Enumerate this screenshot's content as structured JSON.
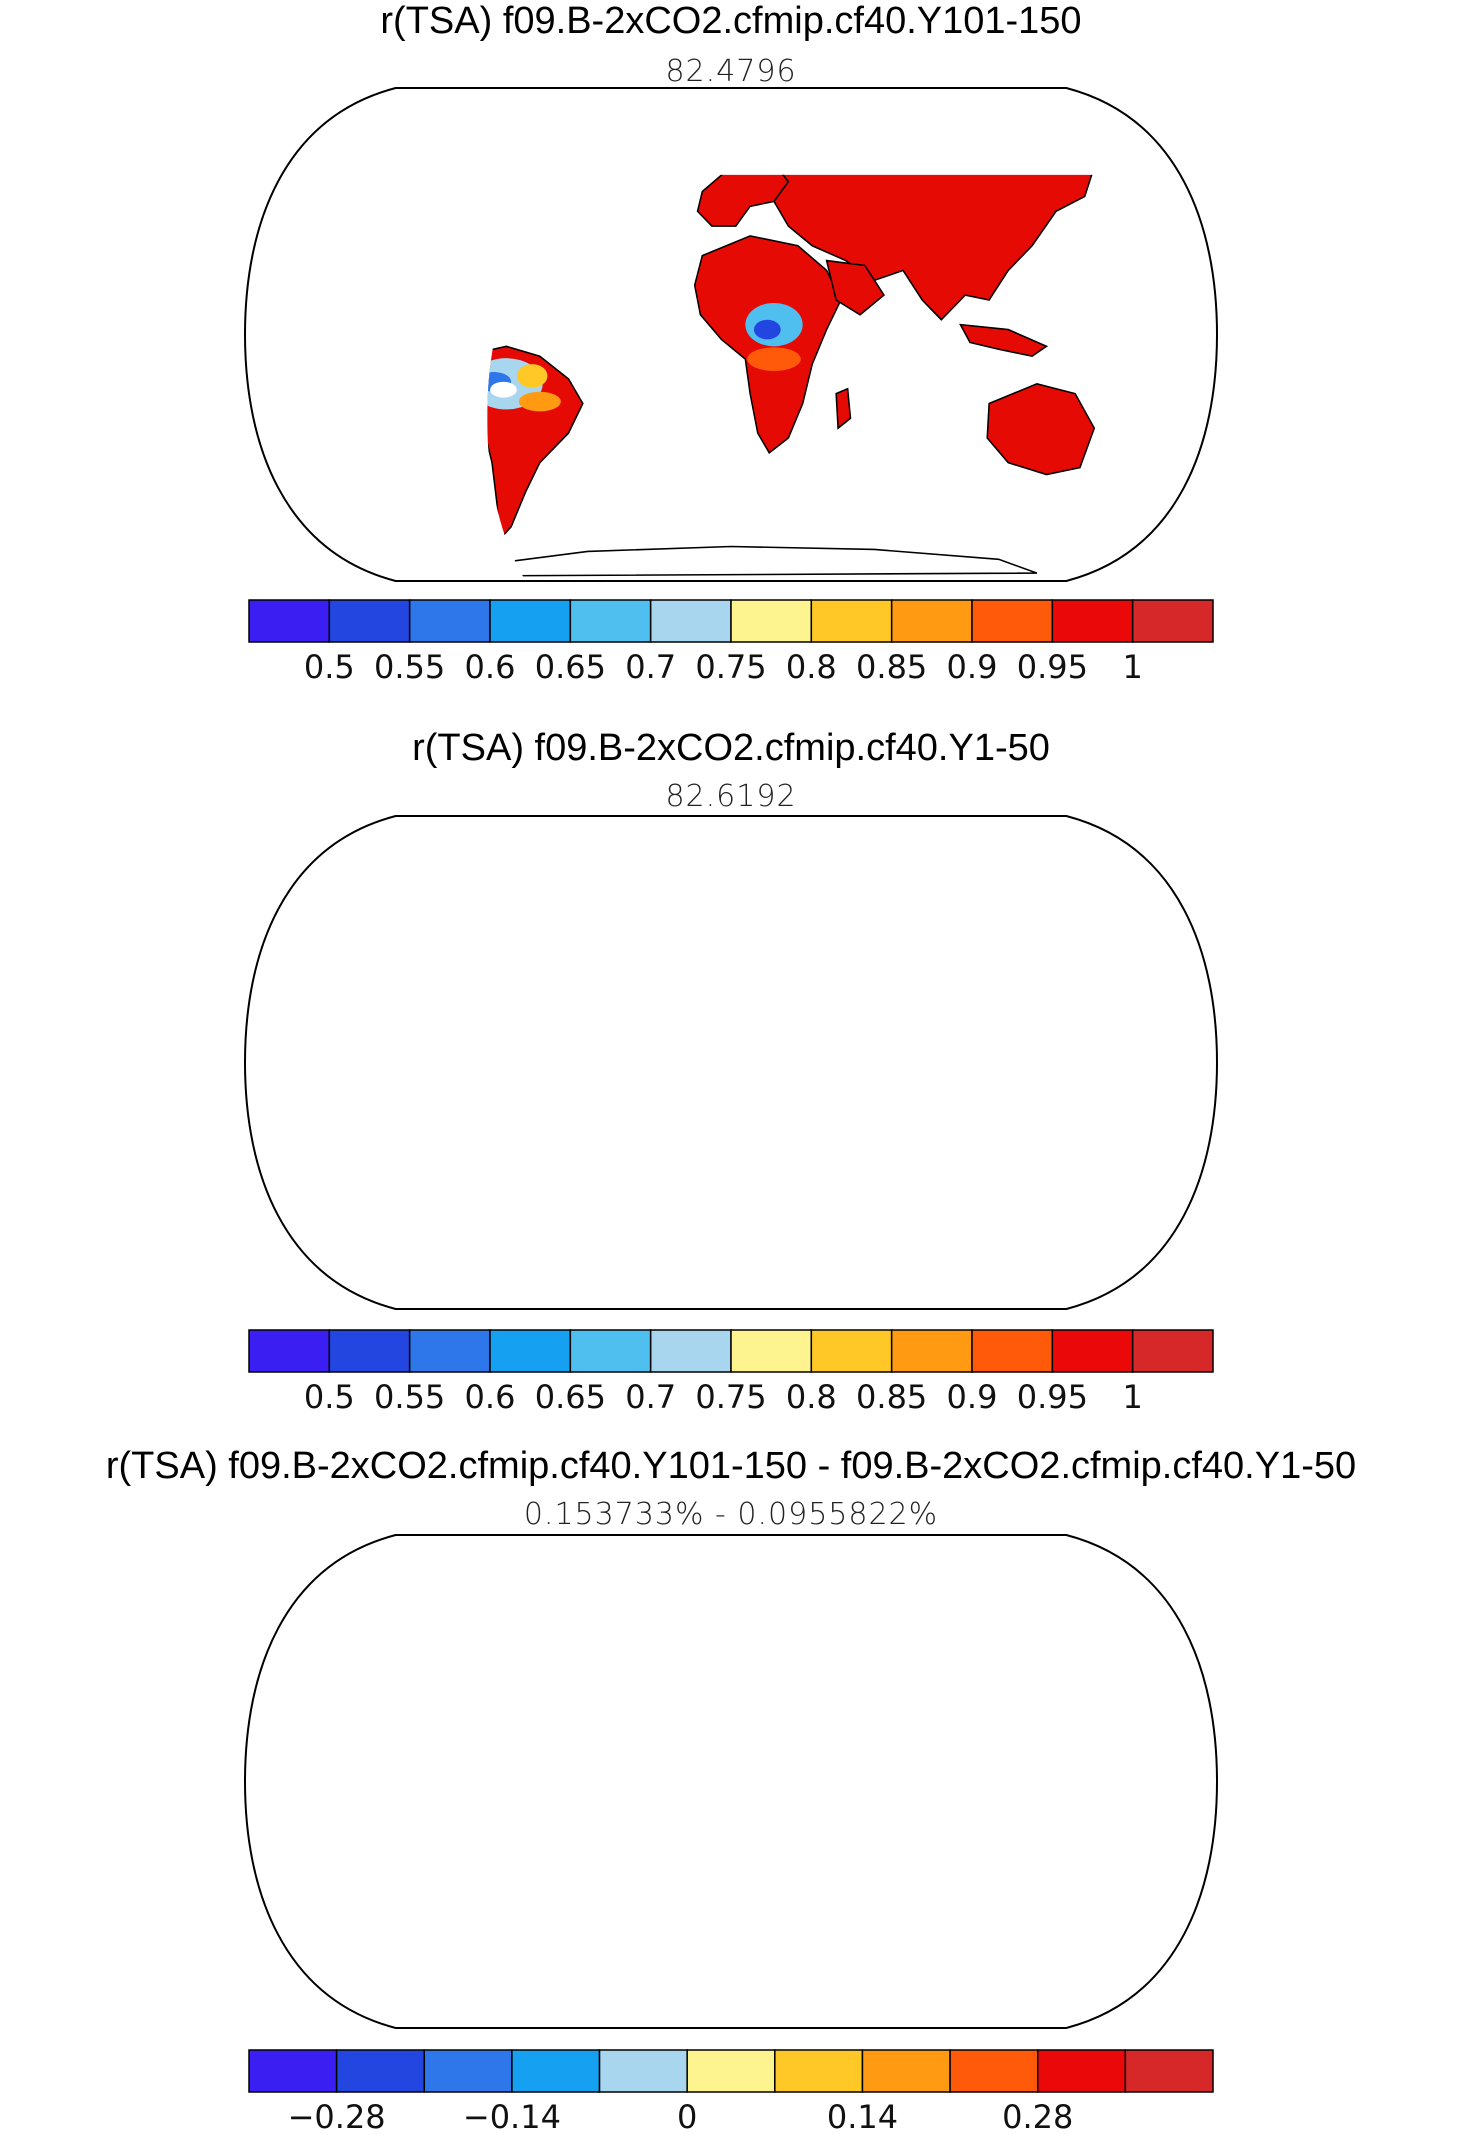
{
  "panels": [
    {
      "title": "r(TSA) f09.B-2xCO2.cfmip.cf40.Y101-150",
      "subtitle": "82.4796",
      "palette": [
        "#3a1ef2",
        "#2446e0",
        "#2e77ea",
        "#16a0f2",
        "#4fbff0",
        "#a7d6ee",
        "#fdf38f",
        "#ffc826",
        "#ff9a12",
        "#ff5a0a",
        "#ea0808",
        "#d62828"
      ],
      "colorbar_labels": [
        "0.5",
        "0.55",
        "0.6",
        "0.65",
        "0.7",
        "0.75",
        "0.8",
        "0.85",
        "0.9",
        "0.95",
        "1"
      ],
      "land_color": "#e60a05"
    },
    {
      "title": "r(TSA) f09.B-2xCO2.cfmip.cf40.Y1-50",
      "subtitle": "82.6192",
      "palette": [
        "#3a1ef2",
        "#2446e0",
        "#2e77ea",
        "#16a0f2",
        "#4fbff0",
        "#a7d6ee",
        "#fdf38f",
        "#ffc826",
        "#ff9a12",
        "#ff5a0a",
        "#ea0808",
        "#d62828"
      ],
      "colorbar_labels": [
        "0.5",
        "0.55",
        "0.6",
        "0.65",
        "0.7",
        "0.75",
        "0.8",
        "0.85",
        "0.9",
        "0.95",
        "1"
      ],
      "land_color": "#e60a05"
    },
    {
      "title": "r(TSA) f09.B-2xCO2.cfmip.cf40.Y101-150 - f09.B-2xCO2.cfmip.cf40.Y1-50",
      "subtitle": "0.153733% - 0.0955822%",
      "palette": [
        "#3a1ef2",
        "#2446e0",
        "#2e77ea",
        "#16a0f2",
        "#a7d6ee",
        "#fdf38f",
        "#ffc826",
        "#ff9a12",
        "#ff5a0a",
        "#ea0808",
        "#d62828"
      ],
      "colorbar_labels": [
        "−0.28",
        "−0.14",
        "0",
        "0.14",
        "0.28"
      ],
      "land_color": "#a7d6ee"
    }
  ]
}
